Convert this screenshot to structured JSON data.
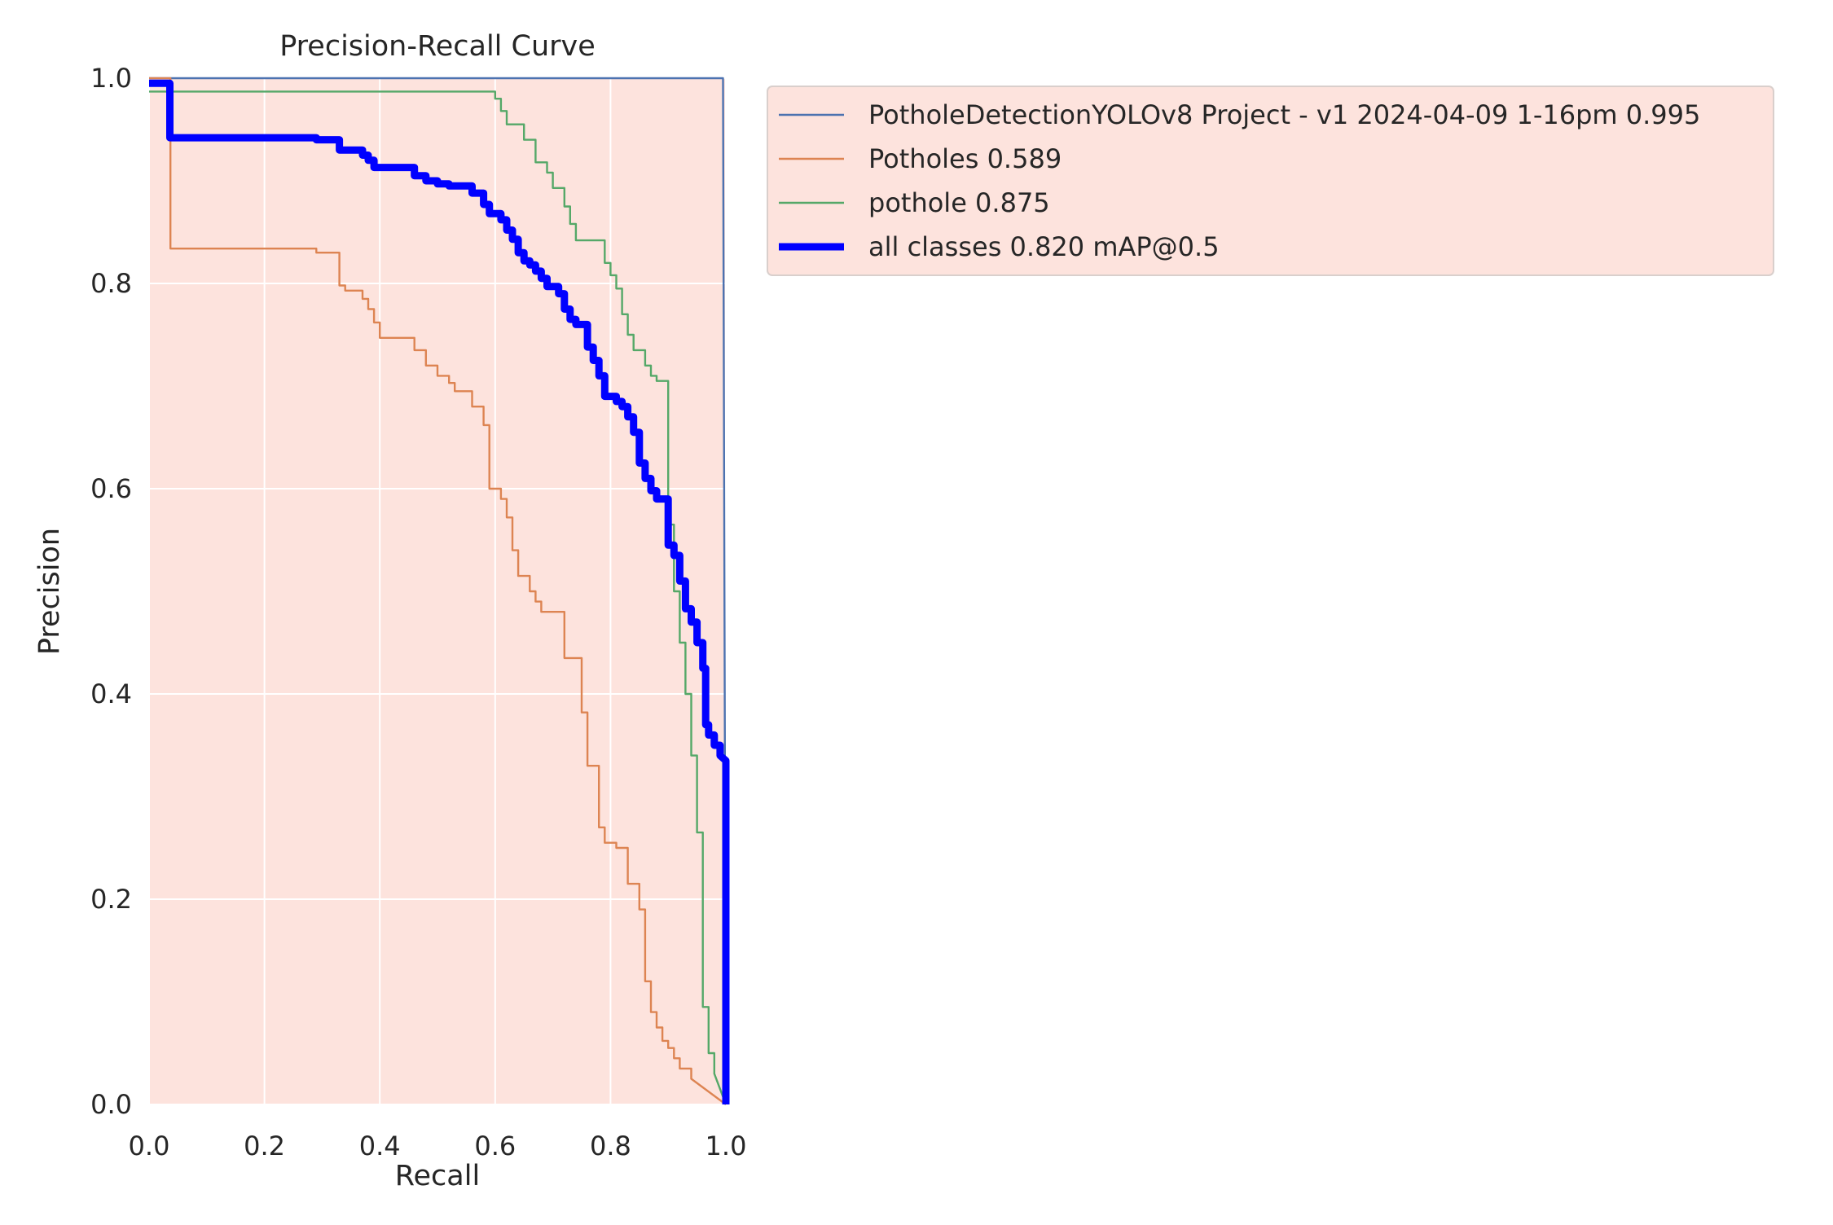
{
  "chart_data": {
    "type": "line",
    "title": "Precision-Recall Curve",
    "xlabel": "Recall",
    "ylabel": "Precision",
    "xlim": [
      0,
      1
    ],
    "ylim": [
      0,
      1
    ],
    "xticks": [
      0,
      0.2,
      0.4,
      0.6,
      0.8,
      1
    ],
    "yticks": [
      0,
      0.2,
      0.4,
      0.6,
      0.8,
      1
    ],
    "xtick_labels": [
      "0.0",
      "0.2",
      "0.4",
      "0.6",
      "0.8",
      "1.0"
    ],
    "ytick_labels": [
      "0.0",
      "0.2",
      "0.4",
      "0.6",
      "0.8",
      "1.0"
    ],
    "grid": true,
    "legend_position": "outside right, top",
    "plot_background": "#fde3dd",
    "series": [
      {
        "name": "PotholeDetectionYOLOv8 Project - v1 2024-04-09 1-16pm 0.995",
        "color": "#4c72b0",
        "points": [
          [
            0.0,
            1.0
          ],
          [
            0.995,
            1.0
          ],
          [
            1.0,
            0.0
          ]
        ]
      },
      {
        "name": "Potholes 0.589",
        "color": "#dd8452",
        "points": [
          [
            0.0,
            1.0
          ],
          [
            0.037,
            1.0
          ],
          [
            0.037,
            0.834
          ],
          [
            0.29,
            0.834
          ],
          [
            0.29,
            0.83
          ],
          [
            0.33,
            0.83
          ],
          [
            0.33,
            0.798
          ],
          [
            0.34,
            0.798
          ],
          [
            0.34,
            0.793
          ],
          [
            0.37,
            0.793
          ],
          [
            0.37,
            0.785
          ],
          [
            0.38,
            0.785
          ],
          [
            0.38,
            0.775
          ],
          [
            0.39,
            0.775
          ],
          [
            0.39,
            0.762
          ],
          [
            0.4,
            0.762
          ],
          [
            0.4,
            0.747
          ],
          [
            0.46,
            0.747
          ],
          [
            0.46,
            0.735
          ],
          [
            0.48,
            0.735
          ],
          [
            0.48,
            0.72
          ],
          [
            0.5,
            0.72
          ],
          [
            0.5,
            0.71
          ],
          [
            0.52,
            0.71
          ],
          [
            0.52,
            0.703
          ],
          [
            0.53,
            0.703
          ],
          [
            0.53,
            0.695
          ],
          [
            0.56,
            0.695
          ],
          [
            0.56,
            0.68
          ],
          [
            0.58,
            0.68
          ],
          [
            0.58,
            0.662
          ],
          [
            0.59,
            0.662
          ],
          [
            0.59,
            0.6
          ],
          [
            0.61,
            0.6
          ],
          [
            0.61,
            0.59
          ],
          [
            0.62,
            0.59
          ],
          [
            0.62,
            0.572
          ],
          [
            0.63,
            0.572
          ],
          [
            0.63,
            0.54
          ],
          [
            0.64,
            0.54
          ],
          [
            0.64,
            0.515
          ],
          [
            0.66,
            0.515
          ],
          [
            0.66,
            0.5
          ],
          [
            0.67,
            0.5
          ],
          [
            0.67,
            0.49
          ],
          [
            0.68,
            0.49
          ],
          [
            0.68,
            0.48
          ],
          [
            0.72,
            0.48
          ],
          [
            0.72,
            0.435
          ],
          [
            0.75,
            0.435
          ],
          [
            0.75,
            0.382
          ],
          [
            0.76,
            0.382
          ],
          [
            0.76,
            0.33
          ],
          [
            0.78,
            0.33
          ],
          [
            0.78,
            0.27
          ],
          [
            0.79,
            0.27
          ],
          [
            0.79,
            0.255
          ],
          [
            0.81,
            0.255
          ],
          [
            0.81,
            0.25
          ],
          [
            0.83,
            0.25
          ],
          [
            0.83,
            0.215
          ],
          [
            0.85,
            0.215
          ],
          [
            0.85,
            0.19
          ],
          [
            0.86,
            0.19
          ],
          [
            0.86,
            0.12
          ],
          [
            0.87,
            0.12
          ],
          [
            0.87,
            0.09
          ],
          [
            0.88,
            0.09
          ],
          [
            0.88,
            0.075
          ],
          [
            0.89,
            0.075
          ],
          [
            0.89,
            0.062
          ],
          [
            0.9,
            0.062
          ],
          [
            0.9,
            0.055
          ],
          [
            0.91,
            0.055
          ],
          [
            0.91,
            0.045
          ],
          [
            0.92,
            0.045
          ],
          [
            0.92,
            0.035
          ],
          [
            0.94,
            0.035
          ],
          [
            0.94,
            0.025
          ],
          [
            1.0,
            0.0
          ]
        ]
      },
      {
        "name": "pothole 0.875",
        "color": "#55a868",
        "points": [
          [
            0.0,
            0.987
          ],
          [
            0.6,
            0.987
          ],
          [
            0.6,
            0.98
          ],
          [
            0.61,
            0.98
          ],
          [
            0.61,
            0.968
          ],
          [
            0.62,
            0.968
          ],
          [
            0.62,
            0.955
          ],
          [
            0.65,
            0.955
          ],
          [
            0.65,
            0.94
          ],
          [
            0.67,
            0.94
          ],
          [
            0.67,
            0.918
          ],
          [
            0.69,
            0.918
          ],
          [
            0.69,
            0.908
          ],
          [
            0.7,
            0.908
          ],
          [
            0.7,
            0.893
          ],
          [
            0.72,
            0.893
          ],
          [
            0.72,
            0.875
          ],
          [
            0.73,
            0.875
          ],
          [
            0.73,
            0.858
          ],
          [
            0.74,
            0.858
          ],
          [
            0.74,
            0.842
          ],
          [
            0.79,
            0.842
          ],
          [
            0.79,
            0.82
          ],
          [
            0.8,
            0.82
          ],
          [
            0.8,
            0.808
          ],
          [
            0.81,
            0.808
          ],
          [
            0.81,
            0.795
          ],
          [
            0.82,
            0.795
          ],
          [
            0.82,
            0.77
          ],
          [
            0.83,
            0.77
          ],
          [
            0.83,
            0.75
          ],
          [
            0.84,
            0.75
          ],
          [
            0.84,
            0.735
          ],
          [
            0.86,
            0.735
          ],
          [
            0.86,
            0.72
          ],
          [
            0.87,
            0.72
          ],
          [
            0.87,
            0.71
          ],
          [
            0.88,
            0.71
          ],
          [
            0.88,
            0.705
          ],
          [
            0.9,
            0.705
          ],
          [
            0.9,
            0.565
          ],
          [
            0.91,
            0.565
          ],
          [
            0.91,
            0.5
          ],
          [
            0.92,
            0.5
          ],
          [
            0.92,
            0.45
          ],
          [
            0.93,
            0.45
          ],
          [
            0.93,
            0.4
          ],
          [
            0.94,
            0.4
          ],
          [
            0.94,
            0.34
          ],
          [
            0.95,
            0.34
          ],
          [
            0.95,
            0.265
          ],
          [
            0.96,
            0.265
          ],
          [
            0.96,
            0.095
          ],
          [
            0.97,
            0.095
          ],
          [
            0.97,
            0.05
          ],
          [
            0.98,
            0.05
          ],
          [
            0.98,
            0.03
          ],
          [
            1.0,
            0.0
          ]
        ]
      },
      {
        "name": "all classes 0.820 mAP@0.5",
        "color": "#0000ff",
        "emphasis": true,
        "points": [
          [
            0.0,
            0.995
          ],
          [
            0.036,
            0.995
          ],
          [
            0.036,
            0.942
          ],
          [
            0.29,
            0.942
          ],
          [
            0.29,
            0.94
          ],
          [
            0.33,
            0.94
          ],
          [
            0.33,
            0.93
          ],
          [
            0.37,
            0.93
          ],
          [
            0.37,
            0.925
          ],
          [
            0.38,
            0.925
          ],
          [
            0.38,
            0.92
          ],
          [
            0.39,
            0.92
          ],
          [
            0.39,
            0.913
          ],
          [
            0.46,
            0.913
          ],
          [
            0.46,
            0.905
          ],
          [
            0.48,
            0.905
          ],
          [
            0.48,
            0.9
          ],
          [
            0.5,
            0.9
          ],
          [
            0.5,
            0.897
          ],
          [
            0.52,
            0.897
          ],
          [
            0.52,
            0.895
          ],
          [
            0.56,
            0.895
          ],
          [
            0.56,
            0.888
          ],
          [
            0.58,
            0.888
          ],
          [
            0.58,
            0.877
          ],
          [
            0.59,
            0.877
          ],
          [
            0.59,
            0.868
          ],
          [
            0.61,
            0.868
          ],
          [
            0.61,
            0.862
          ],
          [
            0.62,
            0.862
          ],
          [
            0.62,
            0.852
          ],
          [
            0.63,
            0.852
          ],
          [
            0.63,
            0.843
          ],
          [
            0.64,
            0.843
          ],
          [
            0.64,
            0.83
          ],
          [
            0.65,
            0.83
          ],
          [
            0.65,
            0.822
          ],
          [
            0.66,
            0.822
          ],
          [
            0.66,
            0.818
          ],
          [
            0.67,
            0.818
          ],
          [
            0.67,
            0.812
          ],
          [
            0.68,
            0.812
          ],
          [
            0.68,
            0.805
          ],
          [
            0.69,
            0.805
          ],
          [
            0.69,
            0.797
          ],
          [
            0.71,
            0.797
          ],
          [
            0.71,
            0.79
          ],
          [
            0.72,
            0.79
          ],
          [
            0.72,
            0.775
          ],
          [
            0.73,
            0.775
          ],
          [
            0.73,
            0.765
          ],
          [
            0.74,
            0.765
          ],
          [
            0.74,
            0.76
          ],
          [
            0.76,
            0.76
          ],
          [
            0.76,
            0.738
          ],
          [
            0.77,
            0.738
          ],
          [
            0.77,
            0.725
          ],
          [
            0.78,
            0.725
          ],
          [
            0.78,
            0.71
          ],
          [
            0.79,
            0.71
          ],
          [
            0.79,
            0.69
          ],
          [
            0.81,
            0.69
          ],
          [
            0.81,
            0.685
          ],
          [
            0.82,
            0.685
          ],
          [
            0.82,
            0.68
          ],
          [
            0.83,
            0.68
          ],
          [
            0.83,
            0.67
          ],
          [
            0.84,
            0.67
          ],
          [
            0.84,
            0.655
          ],
          [
            0.85,
            0.655
          ],
          [
            0.85,
            0.625
          ],
          [
            0.86,
            0.625
          ],
          [
            0.86,
            0.61
          ],
          [
            0.87,
            0.61
          ],
          [
            0.87,
            0.598
          ],
          [
            0.88,
            0.598
          ],
          [
            0.88,
            0.59
          ],
          [
            0.9,
            0.59
          ],
          [
            0.9,
            0.545
          ],
          [
            0.91,
            0.545
          ],
          [
            0.91,
            0.535
          ],
          [
            0.92,
            0.535
          ],
          [
            0.92,
            0.51
          ],
          [
            0.93,
            0.51
          ],
          [
            0.93,
            0.483
          ],
          [
            0.94,
            0.483
          ],
          [
            0.94,
            0.47
          ],
          [
            0.95,
            0.47
          ],
          [
            0.95,
            0.45
          ],
          [
            0.96,
            0.45
          ],
          [
            0.96,
            0.425
          ],
          [
            0.965,
            0.425
          ],
          [
            0.965,
            0.37
          ],
          [
            0.97,
            0.37
          ],
          [
            0.97,
            0.36
          ],
          [
            0.98,
            0.36
          ],
          [
            0.98,
            0.35
          ],
          [
            0.99,
            0.35
          ],
          [
            0.99,
            0.34
          ],
          [
            1.0,
            0.335
          ],
          [
            1.0,
            0.0
          ]
        ]
      }
    ]
  }
}
